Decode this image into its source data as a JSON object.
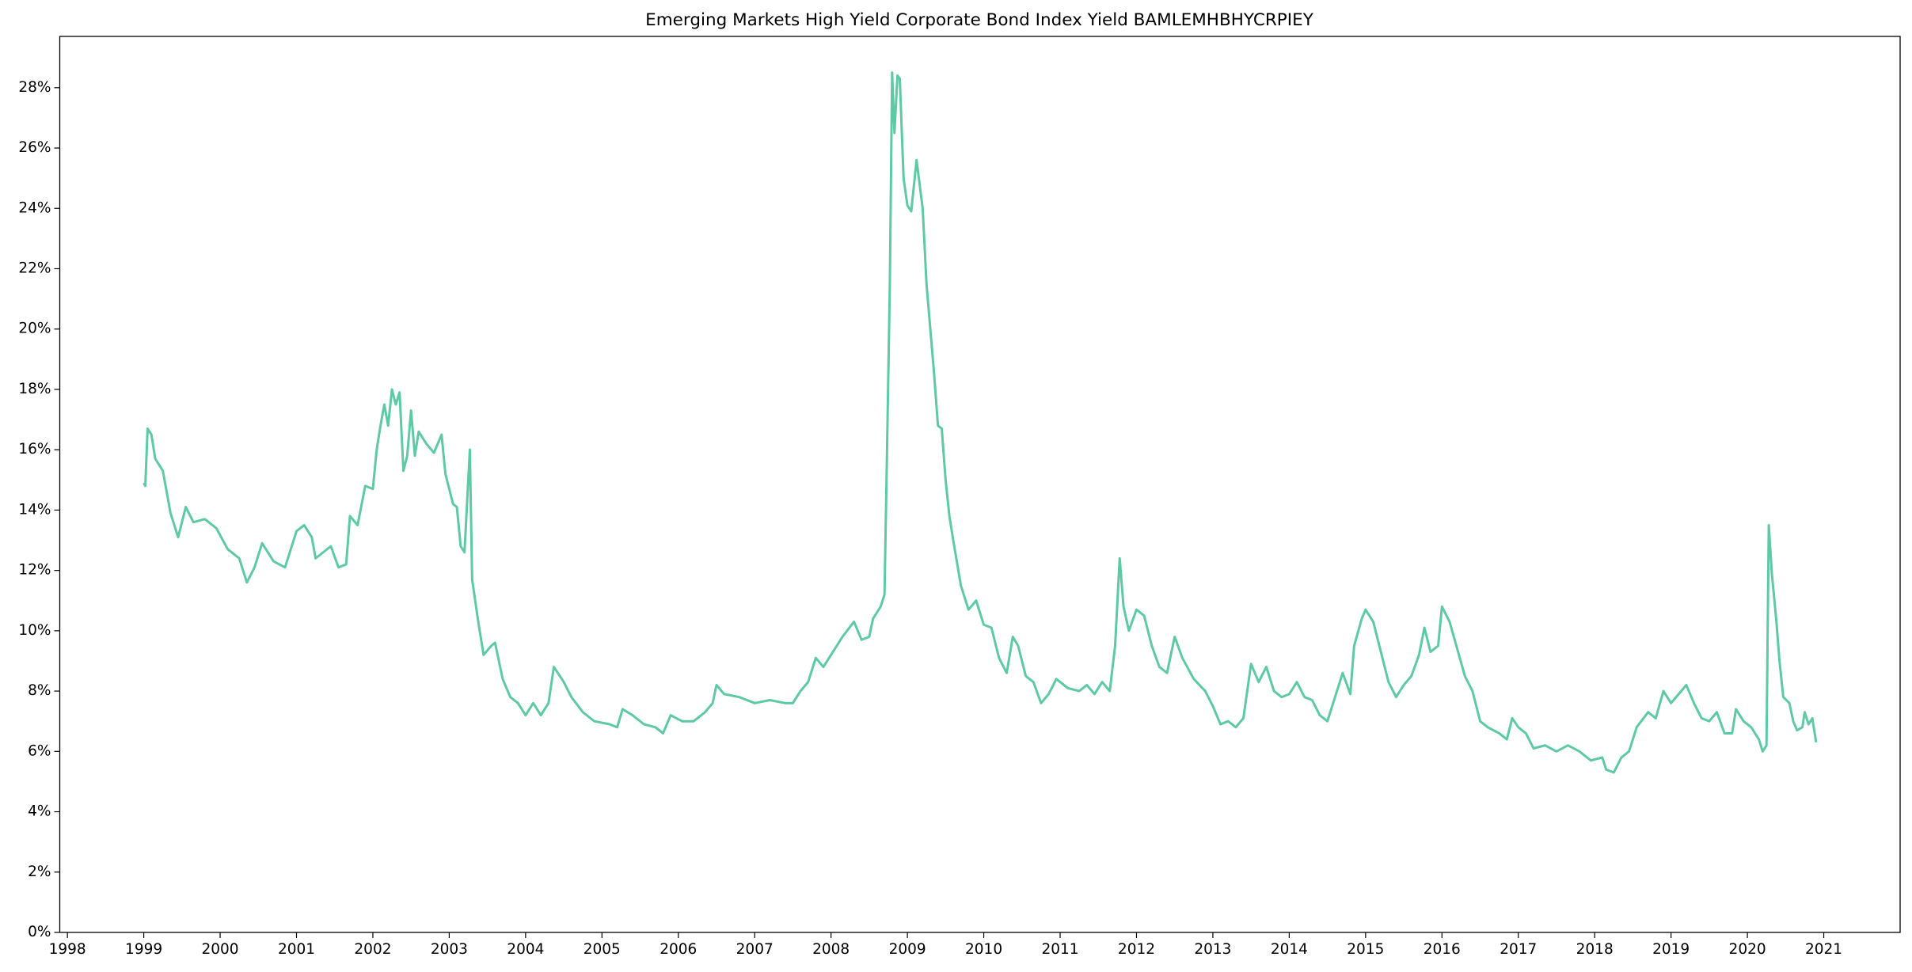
{
  "chart_data": {
    "type": "line",
    "title": "Emerging Markets High Yield Corporate Bond Index Yield BAMLEMHBHYCRPIEY",
    "x": [
      1999.0,
      1999.02,
      1999.05,
      1999.1,
      1999.15,
      1999.25,
      1999.35,
      1999.45,
      1999.55,
      1999.65,
      1999.8,
      1999.95,
      2000.1,
      2000.25,
      2000.35,
      2000.45,
      2000.55,
      2000.7,
      2000.85,
      2001.0,
      2001.1,
      2001.2,
      2001.25,
      2001.35,
      2001.45,
      2001.55,
      2001.65,
      2001.7,
      2001.8,
      2001.9,
      2002.0,
      2002.05,
      2002.1,
      2002.15,
      2002.2,
      2002.25,
      2002.3,
      2002.35,
      2002.4,
      2002.45,
      2002.5,
      2002.55,
      2002.6,
      2002.7,
      2002.8,
      2002.9,
      2002.95,
      2003.05,
      2003.1,
      2003.15,
      2003.2,
      2003.27,
      2003.3,
      2003.38,
      2003.45,
      2003.55,
      2003.6,
      2003.7,
      2003.8,
      2003.9,
      2004.0,
      2004.1,
      2004.2,
      2004.3,
      2004.37,
      2004.5,
      2004.6,
      2004.75,
      2004.9,
      2005.1,
      2005.2,
      2005.27,
      2005.4,
      2005.55,
      2005.7,
      2005.8,
      2005.9,
      2006.05,
      2006.2,
      2006.35,
      2006.45,
      2006.5,
      2006.6,
      2006.8,
      2007.0,
      2007.2,
      2007.4,
      2007.5,
      2007.6,
      2007.7,
      2007.8,
      2007.9,
      2008.0,
      2008.15,
      2008.3,
      2008.4,
      2008.5,
      2008.55,
      2008.65,
      2008.7,
      2008.73,
      2008.77,
      2008.8,
      2008.83,
      2008.87,
      2008.9,
      2008.95,
      2009.0,
      2009.05,
      2009.12,
      2009.2,
      2009.25,
      2009.35,
      2009.4,
      2009.45,
      2009.5,
      2009.55,
      2009.6,
      2009.7,
      2009.8,
      2009.9,
      2010.0,
      2010.1,
      2010.2,
      2010.3,
      2010.38,
      2010.45,
      2010.55,
      2010.65,
      2010.75,
      2010.85,
      2010.95,
      2011.1,
      2011.25,
      2011.35,
      2011.45,
      2011.55,
      2011.65,
      2011.72,
      2011.78,
      2011.83,
      2011.9,
      2012.0,
      2012.1,
      2012.2,
      2012.3,
      2012.4,
      2012.5,
      2012.6,
      2012.75,
      2012.9,
      2013.0,
      2013.1,
      2013.2,
      2013.3,
      2013.4,
      2013.5,
      2013.6,
      2013.7,
      2013.8,
      2013.9,
      2014.0,
      2014.1,
      2014.2,
      2014.3,
      2014.4,
      2014.5,
      2014.6,
      2014.7,
      2014.8,
      2014.85,
      2014.95,
      2015.0,
      2015.1,
      2015.2,
      2015.3,
      2015.4,
      2015.5,
      2015.6,
      2015.7,
      2015.77,
      2015.85,
      2015.95,
      2016.0,
      2016.1,
      2016.2,
      2016.3,
      2016.4,
      2016.5,
      2016.6,
      2016.75,
      2016.85,
      2016.92,
      2017.0,
      2017.1,
      2017.2,
      2017.35,
      2017.5,
      2017.65,
      2017.8,
      2017.95,
      2018.1,
      2018.15,
      2018.25,
      2018.35,
      2018.45,
      2018.55,
      2018.7,
      2018.8,
      2018.9,
      2019.0,
      2019.1,
      2019.2,
      2019.3,
      2019.4,
      2019.5,
      2019.6,
      2019.7,
      2019.8,
      2019.85,
      2019.95,
      2020.05,
      2020.15,
      2020.2,
      2020.25,
      2020.28,
      2020.32,
      2020.38,
      2020.42,
      2020.47,
      2020.55,
      2020.6,
      2020.65,
      2020.72,
      2020.75,
      2020.8,
      2020.85,
      2020.9
    ],
    "series": [
      {
        "name": "BAMLEMHBHYCRPIEY",
        "color": "#5ec9a5",
        "values": [
          14.9,
          14.8,
          16.7,
          16.5,
          15.7,
          15.3,
          13.9,
          13.1,
          14.1,
          13.6,
          13.7,
          13.4,
          12.7,
          12.4,
          11.6,
          12.1,
          12.9,
          12.3,
          12.1,
          13.3,
          13.5,
          13.1,
          12.4,
          12.6,
          12.8,
          12.1,
          12.2,
          13.8,
          13.5,
          14.8,
          14.7,
          16.0,
          16.8,
          17.5,
          16.8,
          18.0,
          17.5,
          17.9,
          15.3,
          15.8,
          17.3,
          15.8,
          16.6,
          16.2,
          15.9,
          16.5,
          15.2,
          14.2,
          14.1,
          12.8,
          12.6,
          16.0,
          11.7,
          10.3,
          9.2,
          9.5,
          9.6,
          8.4,
          7.8,
          7.6,
          7.2,
          7.6,
          7.2,
          7.6,
          8.8,
          8.3,
          7.8,
          7.3,
          7.0,
          6.9,
          6.8,
          7.4,
          7.2,
          6.9,
          6.8,
          6.6,
          7.2,
          7.0,
          7.0,
          7.3,
          7.6,
          8.2,
          7.9,
          7.8,
          7.6,
          7.7,
          7.6,
          7.6,
          8.0,
          8.3,
          9.1,
          8.8,
          9.2,
          9.8,
          10.3,
          9.7,
          9.8,
          10.4,
          10.8,
          11.2,
          15.5,
          21.5,
          28.5,
          26.5,
          28.4,
          28.3,
          25.0,
          24.1,
          23.9,
          25.6,
          24.0,
          21.5,
          18.5,
          16.8,
          16.7,
          15.0,
          13.8,
          13.0,
          11.5,
          10.7,
          11.0,
          10.2,
          10.1,
          9.1,
          8.6,
          9.8,
          9.5,
          8.5,
          8.3,
          7.6,
          7.9,
          8.4,
          8.1,
          8.0,
          8.2,
          7.9,
          8.3,
          8.0,
          9.5,
          12.4,
          10.8,
          10.0,
          10.7,
          10.5,
          9.5,
          8.8,
          8.6,
          9.8,
          9.1,
          8.4,
          8.0,
          7.5,
          6.9,
          7.0,
          6.8,
          7.1,
          8.9,
          8.3,
          8.8,
          8.0,
          7.8,
          7.9,
          8.3,
          7.8,
          7.7,
          7.2,
          7.0,
          7.8,
          8.6,
          7.9,
          9.5,
          10.4,
          10.7,
          10.3,
          9.3,
          8.3,
          7.8,
          8.2,
          8.5,
          9.2,
          10.1,
          9.3,
          9.5,
          10.8,
          10.3,
          9.4,
          8.5,
          8.0,
          7.0,
          6.8,
          6.6,
          6.4,
          7.1,
          6.8,
          6.6,
          6.1,
          6.2,
          6.0,
          6.2,
          6.0,
          5.7,
          5.8,
          5.4,
          5.3,
          5.8,
          6.0,
          6.8,
          7.3,
          7.1,
          8.0,
          7.6,
          7.9,
          8.2,
          7.6,
          7.1,
          7.0,
          7.3,
          6.6,
          6.6,
          7.4,
          7.0,
          6.8,
          6.4,
          6.0,
          6.2,
          13.5,
          11.9,
          10.3,
          9.0,
          7.8,
          7.6,
          7.0,
          6.7,
          6.8,
          7.3,
          6.9,
          7.1,
          6.3
        ]
      }
    ],
    "xlim": [
      1997.9,
      2022.0
    ],
    "xticks": [
      1998,
      1999,
      2000,
      2001,
      2002,
      2003,
      2004,
      2005,
      2006,
      2007,
      2008,
      2009,
      2010,
      2011,
      2012,
      2013,
      2014,
      2015,
      2016,
      2017,
      2018,
      2019,
      2020,
      2021
    ],
    "ylim": [
      0,
      29.7
    ],
    "yticks": [
      {
        "value": 0,
        "label": "0%"
      },
      {
        "value": 2,
        "label": "2%"
      },
      {
        "value": 4,
        "label": "4%"
      },
      {
        "value": 6,
        "label": "6%"
      },
      {
        "value": 8,
        "label": "8%"
      },
      {
        "value": 10,
        "label": "10%"
      },
      {
        "value": 12,
        "label": "12%"
      },
      {
        "value": 14,
        "label": "14%"
      },
      {
        "value": 16,
        "label": "16%"
      },
      {
        "value": 18,
        "label": "18%"
      },
      {
        "value": 20,
        "label": "20%"
      },
      {
        "value": 22,
        "label": "22%"
      },
      {
        "value": 24,
        "label": "24%"
      },
      {
        "value": 26,
        "label": "26%"
      },
      {
        "value": 28,
        "label": "28%"
      }
    ],
    "grid": false
  }
}
